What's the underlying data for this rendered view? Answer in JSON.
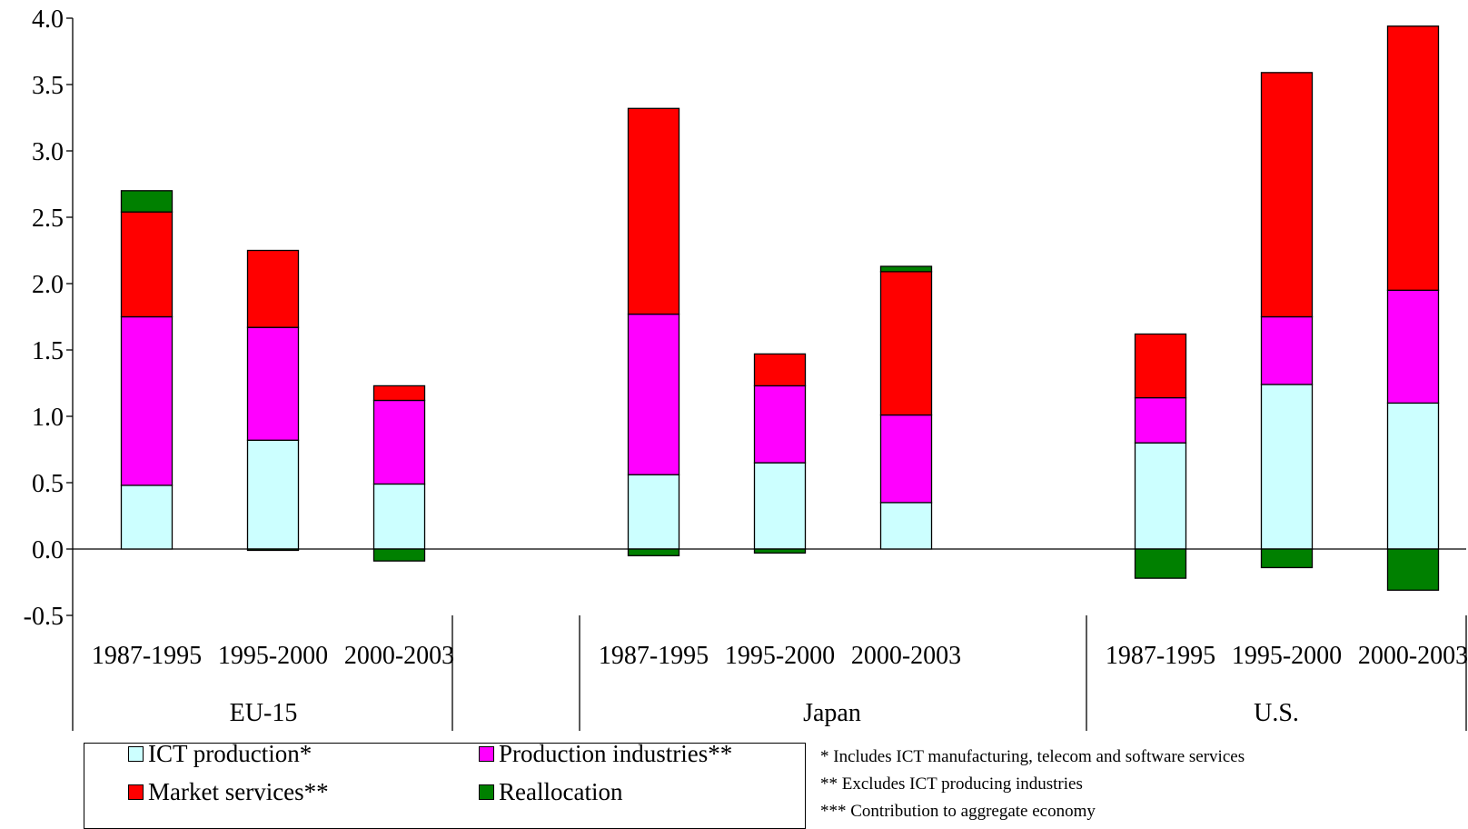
{
  "chart_data": {
    "type": "bar",
    "stacked": true,
    "groups": [
      {
        "name": "EU-15",
        "categories": [
          "1987-1995",
          "1995-2000",
          "2000-2003"
        ]
      },
      {
        "name": "Japan",
        "categories": [
          "1987-1995",
          "1995-2000",
          "2000-2003"
        ]
      },
      {
        "name": "U.S.",
        "categories": [
          "1987-1995",
          "1995-2000",
          "2000-2003"
        ]
      }
    ],
    "series": [
      {
        "name": "ICT production*",
        "color": "#ccffff",
        "values": [
          0.48,
          0.82,
          0.49,
          0.56,
          0.65,
          0.35,
          0.8,
          1.24,
          1.1
        ]
      },
      {
        "name": "Production industries**",
        "color": "#ff00ff",
        "values": [
          1.27,
          0.85,
          0.63,
          1.21,
          0.58,
          0.66,
          0.34,
          0.51,
          0.85
        ]
      },
      {
        "name": "Market services**",
        "color": "#ff0000",
        "values": [
          0.79,
          0.58,
          0.11,
          1.55,
          0.24,
          1.08,
          0.48,
          1.84,
          1.99
        ]
      },
      {
        "name": "Reallocation",
        "color": "#008000",
        "values": [
          0.16,
          -0.01,
          -0.09,
          -0.05,
          -0.03,
          0.04,
          -0.22,
          -0.14,
          -0.31
        ]
      }
    ],
    "ylim": [
      -0.5,
      4.0
    ],
    "yticks": [
      "4.0",
      "3.5",
      "3.0",
      "2.5",
      "2.0",
      "1.5",
      "1.0",
      "0.5",
      "0.0",
      "-0.5"
    ],
    "grid": false,
    "legend_position": "bottom-left"
  },
  "footnotes": [
    "* Includes ICT manufacturing, telecom and software services",
    "** Excludes ICT producing industries",
    "*** Contribution to aggregate economy"
  ]
}
